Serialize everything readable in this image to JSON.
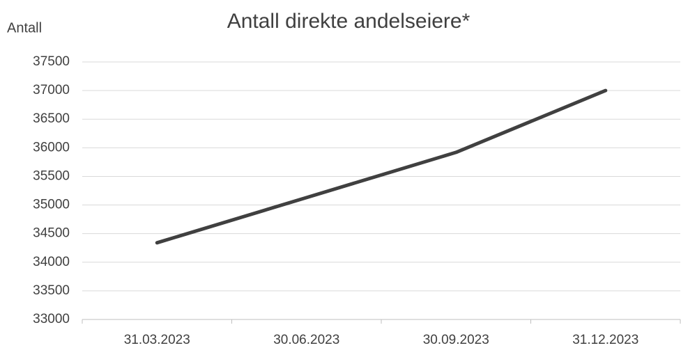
{
  "chart_data": {
    "type": "line",
    "title": "Antall direkte andelseiere*",
    "y_label": "Antall",
    "categories": [
      "31.03.2023",
      "30.06.2023",
      "30.09.2023",
      "31.12.2023"
    ],
    "series": [
      {
        "name": "Antall direkte andelseiere",
        "color": "#404040",
        "values": [
          34340,
          35130,
          35920,
          37000
        ]
      }
    ],
    "ylim": [
      33000,
      37500
    ],
    "yticks": [
      33000,
      33500,
      34000,
      34500,
      35000,
      35500,
      36000,
      36500,
      37000,
      37500
    ],
    "grid": true
  }
}
